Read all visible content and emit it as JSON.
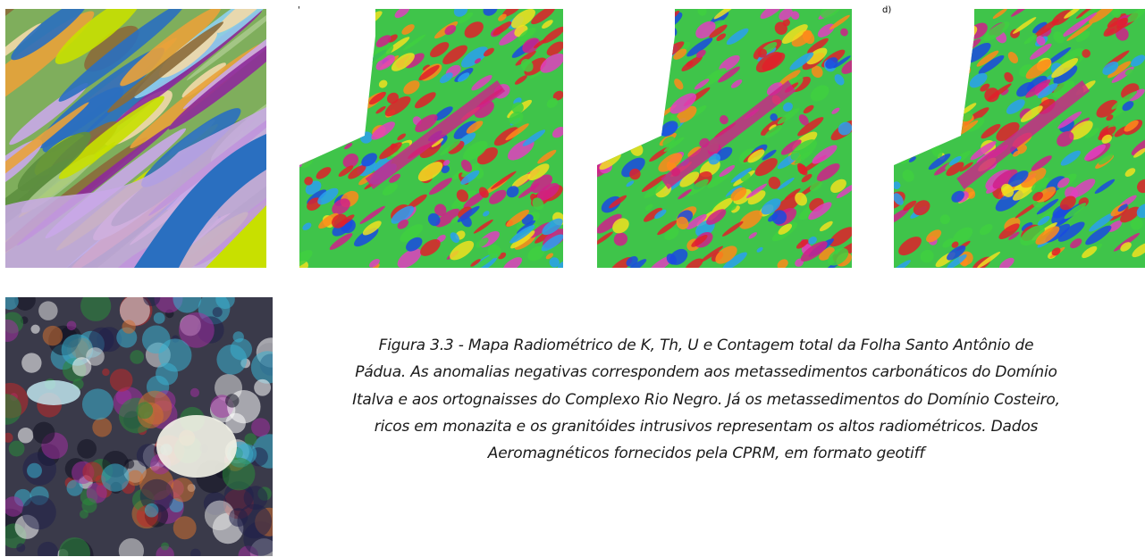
{
  "panel_labels": [
    "'",
    "d)"
  ],
  "caption": {
    "lines": [
      "Figura 3.3 - Mapa Radiométrico de K, Th, U e Contagem total da Folha Santo Antônio de",
      "Pádua. As anomalias negativas correspondem aos metassedimentos carbonáticos do Domínio",
      "Italva e aos ortognaisses do Complexo Rio Negro. Já os metassedimentos do Domínio Costeiro,",
      "ricos em monazita e os granitóides intrusivos representam os altos radiométricos. Dados",
      "Aeromagnéticos fornecidos pela CPRM, em formato geotiff"
    ]
  }
}
